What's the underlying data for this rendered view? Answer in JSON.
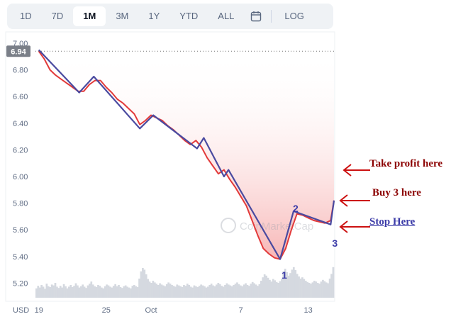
{
  "toolbar": {
    "ranges": [
      "1D",
      "7D",
      "1M",
      "3M",
      "1Y",
      "YTD",
      "ALL"
    ],
    "active": "1M",
    "calendar_icon": "calendar-icon",
    "log_label": "LOG"
  },
  "colors": {
    "price_line": "#e23a3a",
    "fill_top": "#f6a9a9",
    "trend_line": "#4a4aa0",
    "annotation_red": "#8b0000",
    "annotation_blue": "#3c3ca8",
    "arrow": "#cc1111",
    "volume": "#d5d9e0"
  },
  "annotations": {
    "take_profit": "Take profit here",
    "buy": "Buy 3 here",
    "stop": "Stop Here"
  },
  "chart_data": {
    "type": "line",
    "title": "",
    "xlabel": "",
    "ylabel": "",
    "ylim": [
      5.1,
      7.0
    ],
    "y_ticks": [
      "7.00",
      "6.80",
      "6.60",
      "6.40",
      "6.20",
      "6.00",
      "5.80",
      "5.60",
      "5.40",
      "5.20"
    ],
    "x_ticks": [
      "19",
      "25",
      "Oct",
      "7",
      "13"
    ],
    "x_tick_days": [
      0,
      6,
      10,
      18,
      24
    ],
    "axis_unit": "USD",
    "current_price": "6.94",
    "reference_line": 6.94,
    "watermark": "CoinMarketCap",
    "grid": false,
    "series": [
      {
        "values": [
          [
            0.0,
            6.94
          ],
          [
            0.5,
            6.88
          ],
          [
            1.0,
            6.8
          ],
          [
            1.5,
            6.76
          ],
          [
            2.0,
            6.73
          ],
          [
            2.5,
            6.7
          ],
          [
            3.0,
            6.67
          ],
          [
            3.5,
            6.64
          ],
          [
            4.0,
            6.64
          ],
          [
            4.5,
            6.69
          ],
          [
            5.0,
            6.72
          ],
          [
            5.5,
            6.72
          ],
          [
            6.0,
            6.67
          ],
          [
            6.5,
            6.63
          ],
          [
            7.0,
            6.58
          ],
          [
            7.5,
            6.55
          ],
          [
            8.0,
            6.51
          ],
          [
            8.5,
            6.47
          ],
          [
            9.0,
            6.39
          ],
          [
            9.5,
            6.42
          ],
          [
            10.0,
            6.46
          ],
          [
            10.5,
            6.44
          ],
          [
            11.0,
            6.42
          ],
          [
            11.5,
            6.38
          ],
          [
            12.0,
            6.35
          ],
          [
            12.5,
            6.31
          ],
          [
            13.0,
            6.27
          ],
          [
            13.5,
            6.24
          ],
          [
            14.0,
            6.27
          ],
          [
            14.5,
            6.22
          ],
          [
            15.0,
            6.14
          ],
          [
            15.5,
            6.08
          ],
          [
            16.0,
            6.02
          ],
          [
            16.5,
            6.05
          ],
          [
            17.0,
            5.98
          ],
          [
            17.5,
            5.92
          ],
          [
            18.0,
            5.85
          ],
          [
            18.5,
            5.78
          ],
          [
            19.0,
            5.67
          ],
          [
            19.5,
            5.56
          ],
          [
            20.0,
            5.46
          ],
          [
            20.5,
            5.42
          ],
          [
            21.0,
            5.39
          ],
          [
            21.5,
            5.38
          ],
          [
            22.0,
            5.46
          ],
          [
            22.5,
            5.6
          ],
          [
            23.0,
            5.72
          ],
          [
            23.5,
            5.71
          ],
          [
            24.0,
            5.69
          ],
          [
            24.5,
            5.67
          ],
          [
            25.0,
            5.66
          ],
          [
            25.5,
            5.65
          ],
          [
            26.0,
            5.67
          ],
          [
            26.3,
            5.82
          ]
        ]
      }
    ],
    "trend_lines": [
      [
        [
          0.0,
          6.95
        ],
        [
          3.6,
          6.63
        ],
        [
          4.9,
          6.75
        ],
        [
          9.0,
          6.36
        ],
        [
          10.2,
          6.46
        ],
        [
          14.1,
          6.21
        ],
        [
          14.7,
          6.29
        ],
        [
          16.5,
          6.0
        ],
        [
          16.9,
          6.05
        ],
        [
          21.5,
          5.38
        ],
        [
          22.7,
          5.74
        ],
        [
          26.0,
          5.64
        ],
        [
          26.3,
          5.82
        ]
      ]
    ],
    "wave_labels": [
      {
        "text": "1",
        "x": 21.5,
        "y": 5.33
      },
      {
        "text": "2",
        "x": 22.5,
        "y": 5.83
      },
      {
        "text": "3",
        "x": 26.0,
        "y": 5.57
      }
    ],
    "volume": [
      0.22,
      0.28,
      0.24,
      0.3,
      0.26,
      0.21,
      0.33,
      0.27,
      0.25,
      0.31,
      0.29,
      0.35,
      0.26,
      0.23,
      0.28,
      0.24,
      0.32,
      0.27,
      0.22,
      0.26,
      0.3,
      0.25,
      0.28,
      0.34,
      0.29,
      0.24,
      0.27,
      0.31,
      0.26,
      0.23,
      0.29,
      0.33,
      0.38,
      0.31,
      0.27,
      0.25,
      0.3,
      0.28,
      0.24,
      0.22,
      0.27,
      0.31,
      0.29,
      0.26,
      0.24,
      0.28,
      0.32,
      0.27,
      0.3,
      0.25,
      0.23,
      0.27,
      0.29,
      0.26,
      0.24,
      0.22,
      0.28,
      0.3,
      0.27,
      0.25,
      0.45,
      0.62,
      0.7,
      0.66,
      0.55,
      0.44,
      0.38,
      0.35,
      0.4,
      0.36,
      0.33,
      0.3,
      0.34,
      0.31,
      0.29,
      0.27,
      0.32,
      0.36,
      0.33,
      0.3,
      0.28,
      0.26,
      0.31,
      0.29,
      0.27,
      0.25,
      0.3,
      0.28,
      0.33,
      0.3,
      0.26,
      0.24,
      0.29,
      0.27,
      0.25,
      0.28,
      0.31,
      0.29,
      0.27,
      0.24,
      0.26,
      0.3,
      0.33,
      0.29,
      0.27,
      0.31,
      0.35,
      0.32,
      0.28,
      0.26,
      0.3,
      0.34,
      0.31,
      0.29,
      0.27,
      0.3,
      0.33,
      0.36,
      0.32,
      0.29,
      0.27,
      0.31,
      0.34,
      0.3,
      0.28,
      0.33,
      0.37,
      0.34,
      0.31,
      0.28,
      0.32,
      0.4,
      0.48,
      0.55,
      0.52,
      0.47,
      0.42,
      0.38,
      0.44,
      0.41,
      0.37,
      0.35,
      0.39,
      0.45,
      0.62,
      0.68,
      0.6,
      0.52,
      0.58,
      0.66,
      0.72,
      0.65,
      0.56,
      0.5,
      0.45,
      0.48,
      0.44,
      0.4,
      0.37,
      0.35,
      0.33,
      0.36,
      0.4,
      0.38,
      0.35,
      0.33,
      0.38,
      0.42,
      0.39,
      0.36,
      0.34,
      0.45,
      0.56,
      0.72
    ]
  }
}
